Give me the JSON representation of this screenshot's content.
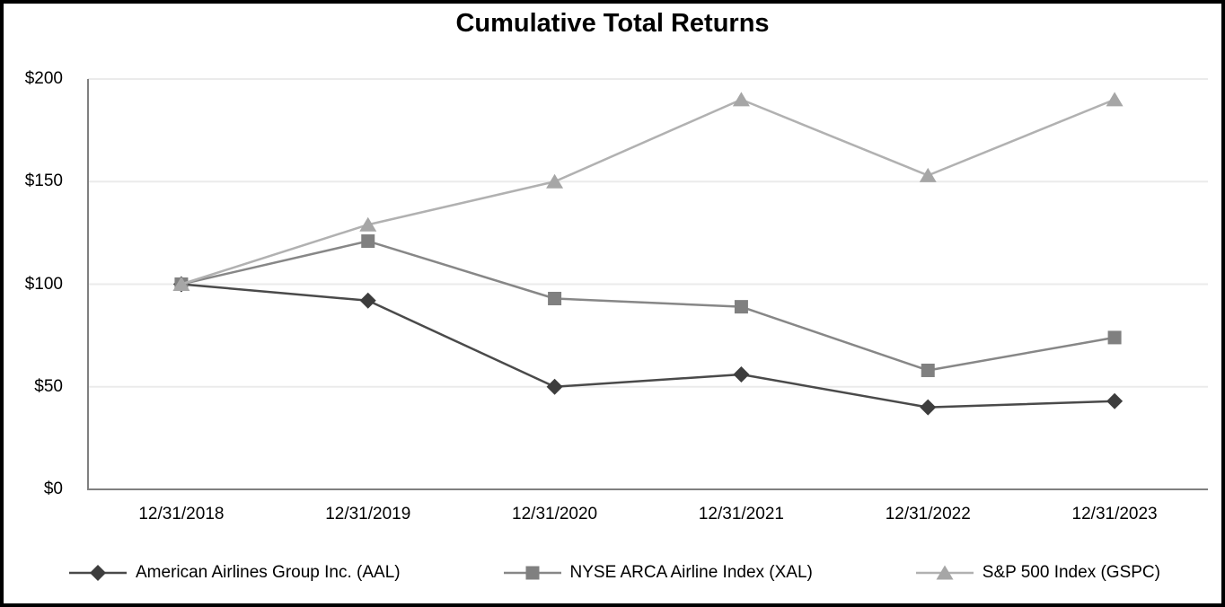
{
  "figure": {
    "background": "#ffffff",
    "border_color": "#000000"
  },
  "chart_data": {
    "type": "line",
    "title": "Cumulative Total Returns",
    "categories": [
      "12/31/2018",
      "12/31/2019",
      "12/31/2020",
      "12/31/2021",
      "12/31/2022",
      "12/31/2023"
    ],
    "series": [
      {
        "id": "aal",
        "name": "American Airlines Group Inc. (AAL)",
        "values": [
          100,
          92,
          50,
          56,
          40,
          43
        ],
        "marker": "diamond",
        "line_color": "#4a4a4a",
        "marker_color": "#3d3d3d"
      },
      {
        "id": "xal",
        "name": "NYSE ARCA Airline Index (XAL)",
        "values": [
          100,
          121,
          93,
          89,
          58,
          74
        ],
        "marker": "square",
        "line_color": "#878787",
        "marker_color": "#808080"
      },
      {
        "id": "gspc",
        "name": "S&P 500 Index (GSPC)",
        "values": [
          100,
          129,
          150,
          190,
          153,
          190
        ],
        "marker": "triangle",
        "line_color": "#b1b1b1",
        "marker_color": "#a6a6a6"
      }
    ],
    "xlabel": "",
    "ylabel": "",
    "ylim": [
      0,
      200
    ],
    "yticks": [
      {
        "value": 0,
        "label": "$0"
      },
      {
        "value": 50,
        "label": "$50"
      },
      {
        "value": 100,
        "label": "$100"
      },
      {
        "value": 150,
        "label": "$150"
      },
      {
        "value": 200,
        "label": "$200"
      }
    ],
    "grid": "horizontal",
    "gridline_color": "#ebebeb",
    "axis_color": "#808080",
    "legend_position": "bottom"
  }
}
